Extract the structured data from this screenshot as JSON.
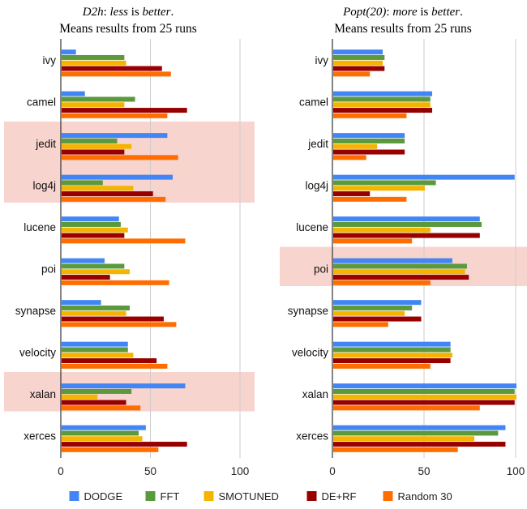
{
  "legend": {
    "position": "bottom-center",
    "entries": [
      {
        "name": "DODGE",
        "color": "#4285f4"
      },
      {
        "name": "FFT",
        "color": "#5b9a3c"
      },
      {
        "name": "SMOTUNED",
        "color": "#f4b400"
      },
      {
        "name": "DE+RF",
        "color": "#980000"
      },
      {
        "name": "Random 30",
        "color": "#ff6d01"
      }
    ]
  },
  "highlight_color": "#f8d4cf",
  "chart_data": [
    {
      "type": "bar",
      "orientation": "horizontal",
      "title_main": "D2h",
      "title_rest": ": ",
      "title_em": "less",
      "title_tail": " is ",
      "title_em2": "better",
      "title_end": ".",
      "subtitle": "Means results from 25 runs",
      "xlim": [
        0,
        100
      ],
      "xticks": [
        0,
        50,
        100
      ],
      "grid": true,
      "categories": [
        "ivy",
        "camel",
        "jedit",
        "log4j",
        "lucene",
        "poi",
        "synapse",
        "velocity",
        "xalan",
        "xerces"
      ],
      "highlighted_categories": [
        "jedit",
        "log4j",
        "xalan"
      ],
      "series": [
        {
          "name": "DODGE",
          "values": [
            8,
            13,
            59,
            62,
            32,
            24,
            22,
            37,
            69,
            47
          ]
        },
        {
          "name": "FFT",
          "values": [
            35,
            41,
            31,
            23,
            33,
            35,
            38,
            37,
            39,
            43
          ]
        },
        {
          "name": "SMOTUNED",
          "values": [
            36,
            35,
            39,
            40,
            37,
            38,
            36,
            40,
            20,
            45
          ]
        },
        {
          "name": "DE+RF",
          "values": [
            56,
            70,
            35,
            51,
            35,
            27,
            57,
            53,
            36,
            70
          ]
        },
        {
          "name": "Random 30",
          "values": [
            61,
            59,
            65,
            58,
            69,
            60,
            64,
            59,
            44,
            54
          ]
        }
      ]
    },
    {
      "type": "bar",
      "orientation": "horizontal",
      "title_main": "Popt(20)",
      "title_rest": ": ",
      "title_em": "more",
      "title_tail": " is ",
      "title_em2": "better",
      "title_end": ".",
      "subtitle": "Means results from 25 runs",
      "xlim": [
        0,
        100
      ],
      "xticks": [
        0,
        50,
        100
      ],
      "grid": true,
      "categories": [
        "ivy",
        "camel",
        "jedit",
        "log4j",
        "lucene",
        "poi",
        "synapse",
        "velocity",
        "xalan",
        "xerces"
      ],
      "highlighted_categories": [
        "poi"
      ],
      "series": [
        {
          "name": "DODGE",
          "values": [
            27,
            54,
            39,
            99,
            80,
            65,
            48,
            64,
            100,
            94
          ]
        },
        {
          "name": "FFT",
          "values": [
            28,
            53,
            39,
            56,
            81,
            73,
            43,
            64,
            99,
            90
          ]
        },
        {
          "name": "SMOTUNED",
          "values": [
            27,
            53,
            24,
            50,
            53,
            72,
            39,
            65,
            100,
            77
          ]
        },
        {
          "name": "DE+RF",
          "values": [
            28,
            54,
            39,
            20,
            80,
            74,
            48,
            64,
            99,
            94
          ]
        },
        {
          "name": "Random 30",
          "values": [
            20,
            40,
            18,
            40,
            43,
            53,
            30,
            53,
            80,
            68
          ]
        }
      ]
    }
  ]
}
